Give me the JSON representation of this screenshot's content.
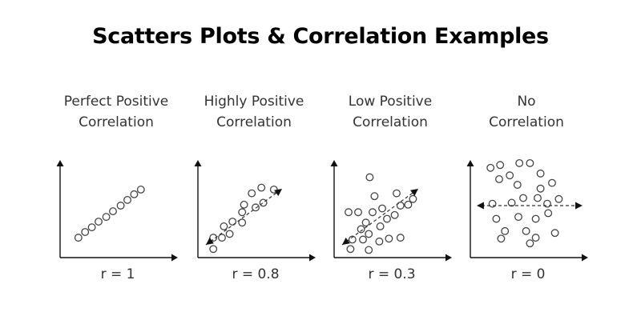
{
  "title": "Scatters Plots & Correlation Examples",
  "chart_data": [
    {
      "type": "scatter",
      "title_lines": [
        "Perfect Positive",
        "Correlation"
      ],
      "r_label": "r = 1",
      "trend_arrow": "none",
      "ylim": [
        0,
        10
      ],
      "xlim": [
        0,
        10
      ],
      "points": [
        [
          1.4,
          1.6
        ],
        [
          2.1,
          2.2
        ],
        [
          2.8,
          2.7
        ],
        [
          3.5,
          3.3
        ],
        [
          4.3,
          3.8
        ],
        [
          5.0,
          4.4
        ],
        [
          5.8,
          5.0
        ],
        [
          6.5,
          5.6
        ],
        [
          7.2,
          6.2
        ],
        [
          7.9,
          6.7
        ]
      ]
    },
    {
      "type": "scatter",
      "title_lines": [
        "Highly Positive",
        "Correlation"
      ],
      "r_label": "r = 0.8",
      "trend_arrow": "diagonal",
      "ylim": [
        0,
        10
      ],
      "xlim": [
        0,
        10
      ],
      "points": [
        [
          1.1,
          0.4
        ],
        [
          1.1,
          1.6
        ],
        [
          2.0,
          1.6
        ],
        [
          2.8,
          2.0
        ],
        [
          2.2,
          2.8
        ],
        [
          3.1,
          3.3
        ],
        [
          4.1,
          3.2
        ],
        [
          4.1,
          4.3
        ],
        [
          4.3,
          5.1
        ],
        [
          5.5,
          4.8
        ],
        [
          5.1,
          6.3
        ],
        [
          6.3,
          5.3
        ],
        [
          6.1,
          6.9
        ],
        [
          7.4,
          6.7
        ]
      ]
    },
    {
      "type": "scatter",
      "title_lines": [
        "Low Positive",
        "Correlation"
      ],
      "r_label": "r = 0.3",
      "trend_arrow": "diagonal",
      "ylim": [
        0,
        10
      ],
      "xlim": [
        0,
        10
      ],
      "points": [
        [
          1.0,
          4.3
        ],
        [
          2.0,
          4.3
        ],
        [
          3.5,
          4.3
        ],
        [
          3.7,
          6.0
        ],
        [
          3.2,
          8.0
        ],
        [
          5.0,
          3.6
        ],
        [
          4.5,
          4.7
        ],
        [
          6.0,
          6.3
        ],
        [
          5.8,
          4.0
        ],
        [
          6.4,
          5.0
        ],
        [
          4.3,
          2.8
        ],
        [
          2.8,
          3.2
        ],
        [
          2.3,
          2.5
        ],
        [
          3.1,
          2.0
        ],
        [
          1.4,
          1.4
        ],
        [
          2.5,
          1.4
        ],
        [
          4.2,
          1.2
        ],
        [
          5.2,
          1.5
        ],
        [
          6.4,
          1.6
        ],
        [
          1.2,
          0.4
        ],
        [
          3.1,
          0.3
        ],
        [
          7.2,
          5.1
        ],
        [
          7.7,
          5.7
        ]
      ]
    },
    {
      "type": "scatter",
      "title_lines": [
        "No",
        "Correlation"
      ],
      "r_label": "r = 0",
      "trend_arrow": "horizontal",
      "ylim": [
        0,
        10
      ],
      "xlim": [
        0,
        10
      ],
      "points": [
        [
          1.6,
          9.0
        ],
        [
          2.6,
          9.3
        ],
        [
          3.6,
          8.2
        ],
        [
          4.6,
          9.5
        ],
        [
          5.7,
          9.5
        ],
        [
          6.8,
          8.4
        ],
        [
          2.5,
          7.8
        ],
        [
          4.4,
          7.2
        ],
        [
          5.0,
          5.8
        ],
        [
          6.8,
          6.8
        ],
        [
          8.0,
          7.4
        ],
        [
          1.8,
          5.2
        ],
        [
          3.8,
          5.3
        ],
        [
          6.5,
          5.8
        ],
        [
          7.5,
          5.2
        ],
        [
          2.2,
          3.6
        ],
        [
          3.1,
          2.3
        ],
        [
          4.5,
          3.8
        ],
        [
          5.3,
          2.3
        ],
        [
          6.3,
          3.6
        ],
        [
          6.3,
          1.6
        ],
        [
          7.6,
          4.2
        ],
        [
          8.3,
          2.1
        ],
        [
          8.7,
          5.7
        ],
        [
          2.7,
          1.5
        ],
        [
          5.7,
          1.0
        ]
      ]
    }
  ]
}
